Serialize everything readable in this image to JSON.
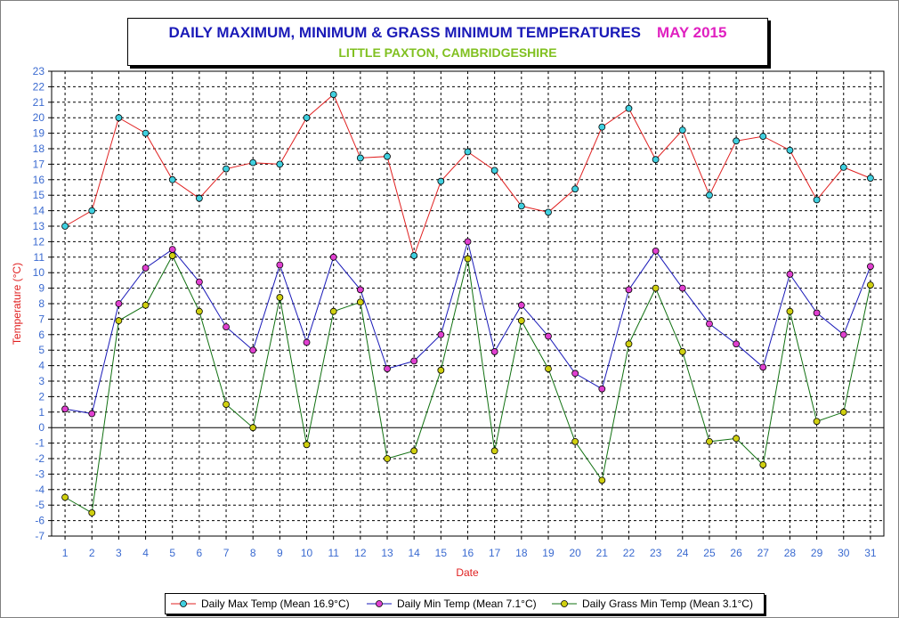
{
  "title": {
    "main": "DAILY MAXIMUM, MINIMUM & GRASS MINIMUM TEMPERATURES",
    "month": "MAY 2015",
    "subtitle": "LITTLE PAXTON, CAMBRIDGESHIRE"
  },
  "chart_data": {
    "type": "line",
    "xlabel": "Date",
    "ylabel": "Temperature (°C)",
    "ylim": [
      -7,
      23
    ],
    "ytick_step": 1,
    "grid": true,
    "legend_position": "bottom",
    "x": [
      1,
      2,
      3,
      4,
      5,
      6,
      7,
      8,
      9,
      10,
      11,
      12,
      13,
      14,
      15,
      16,
      17,
      18,
      19,
      20,
      21,
      22,
      23,
      24,
      25,
      26,
      27,
      28,
      29,
      30,
      31
    ],
    "series": [
      {
        "name": "Daily Max Temp (Mean 16.9°C)",
        "line_color": "#e02020",
        "marker_color": "#40d0e0",
        "values": [
          13.0,
          14.0,
          20.0,
          19.0,
          16.0,
          14.8,
          16.7,
          17.1,
          17.0,
          20.0,
          21.5,
          17.4,
          17.5,
          11.1,
          15.9,
          17.8,
          16.6,
          14.3,
          13.9,
          15.4,
          19.4,
          20.6,
          17.3,
          19.2,
          15.0,
          18.5,
          18.8,
          17.9,
          14.7,
          16.8,
          16.1
        ]
      },
      {
        "name": "Daily Min Temp (Mean 7.1°C)",
        "line_color": "#1a1ab8",
        "marker_color": "#e040d0",
        "values": [
          1.2,
          0.9,
          8.0,
          10.3,
          11.5,
          9.4,
          6.5,
          5.0,
          10.5,
          5.5,
          11.0,
          8.9,
          3.8,
          4.3,
          6.0,
          12.0,
          4.9,
          7.9,
          5.9,
          3.5,
          2.5,
          8.9,
          11.4,
          9.0,
          6.7,
          5.4,
          3.9,
          9.9,
          7.4,
          6.0,
          10.4
        ]
      },
      {
        "name": "Daily Grass Min Temp (Mean 3.1°C)",
        "line_color": "#107010",
        "marker_color": "#d0d010",
        "values": [
          -4.5,
          -5.5,
          6.9,
          7.9,
          11.1,
          7.5,
          1.5,
          0.0,
          8.4,
          -1.1,
          7.5,
          8.1,
          -2.0,
          -1.5,
          3.7,
          10.9,
          -1.5,
          6.9,
          3.8,
          -0.9,
          -3.4,
          5.4,
          9.0,
          4.9,
          -0.9,
          -0.7,
          -2.4,
          7.5,
          0.4,
          1.0,
          9.2
        ]
      }
    ]
  },
  "colors": {
    "axis_label": "#e02020",
    "tick_label": "#3a6ad0"
  }
}
